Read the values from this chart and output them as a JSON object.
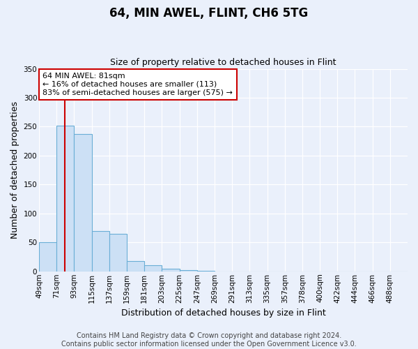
{
  "title": "64, MIN AWEL, FLINT, CH6 5TG",
  "subtitle": "Size of property relative to detached houses in Flint",
  "xlabel": "Distribution of detached houses by size in Flint",
  "ylabel": "Number of detached properties",
  "bin_labels": [
    "49sqm",
    "71sqm",
    "93sqm",
    "115sqm",
    "137sqm",
    "159sqm",
    "181sqm",
    "203sqm",
    "225sqm",
    "247sqm",
    "269sqm",
    "291sqm",
    "313sqm",
    "335sqm",
    "357sqm",
    "378sqm",
    "400sqm",
    "422sqm",
    "444sqm",
    "466sqm",
    "488sqm"
  ],
  "bar_values": [
    50,
    252,
    237,
    70,
    65,
    18,
    10,
    5,
    2,
    1,
    0,
    0,
    0,
    0,
    0,
    0,
    0,
    0,
    0,
    0,
    0
  ],
  "bar_color": "#cce0f5",
  "bar_edge_color": "#6aaed6",
  "vline_x": 1.45,
  "vline_color": "#cc0000",
  "ylim": [
    0,
    350
  ],
  "yticks": [
    0,
    50,
    100,
    150,
    200,
    250,
    300,
    350
  ],
  "annotation_box_text": "64 MIN AWEL: 81sqm\n← 16% of detached houses are smaller (113)\n83% of semi-detached houses are larger (575) →",
  "background_color": "#eaf0fb",
  "grid_color": "#ffffff",
  "title_fontsize": 12,
  "subtitle_fontsize": 9,
  "axis_label_fontsize": 9,
  "tick_fontsize": 7.5,
  "annotation_fontsize": 8,
  "footer_fontsize": 7,
  "footer_line1": "Contains HM Land Registry data © Crown copyright and database right 2024.",
  "footer_line2": "Contains public sector information licensed under the Open Government Licence v3.0."
}
